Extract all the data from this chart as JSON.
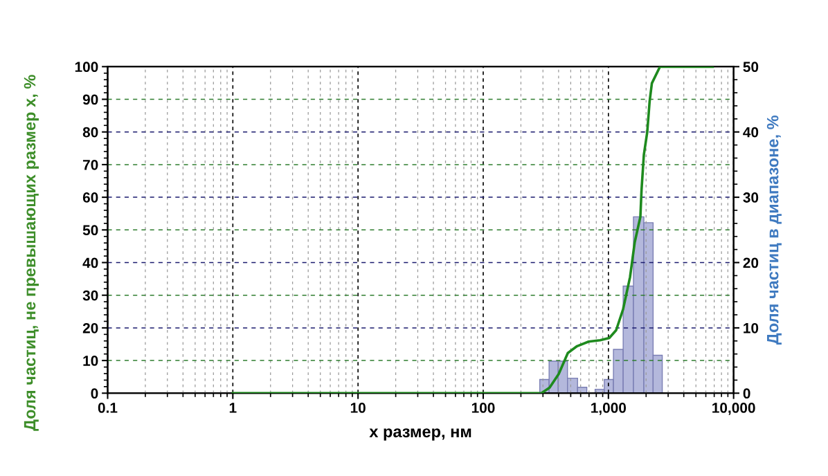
{
  "chart_data": {
    "type": "line",
    "xlabel": "x размер, нм",
    "ylabel": "Доля частиц, не превышающих размер x, %",
    "y2label": "Доля частиц в диапазоне, %",
    "log": "x",
    "xlim": [
      0.1,
      10000
    ],
    "xticks": [
      {
        "value": 0.1,
        "label": "0.1"
      },
      {
        "value": 1,
        "label": "1"
      },
      {
        "value": 10,
        "label": "10"
      },
      {
        "value": 100,
        "label": "100"
      },
      {
        "value": 1000,
        "label": "1,000"
      },
      {
        "value": 10000,
        "label": "10,000"
      }
    ],
    "ylim": [
      0,
      100
    ],
    "yticks": [
      0,
      10,
      20,
      30,
      40,
      50,
      60,
      70,
      80,
      90,
      100
    ],
    "y2lim": [
      0,
      50
    ],
    "y2ticks": [
      0,
      10,
      20,
      30,
      40,
      50
    ],
    "grid": true,
    "series": [
      {
        "type": "histogram",
        "axis": "y2",
        "color": "#b4b8dc",
        "bins": [
          283,
          336,
          397,
          471,
          567,
          672,
          783,
          927,
          1097,
          1312,
          1585,
          1919,
          2275,
          2692
        ],
        "values": [
          2.1,
          4.9,
          4.9,
          2.3,
          0.9,
          null,
          0.6,
          2.1,
          6.7,
          16.4,
          27.0,
          26.1,
          5.8
        ]
      },
      {
        "axis": "y",
        "color": "#1e8a1e",
        "x": [
          1,
          292,
          339,
          401,
          474,
          562,
          695,
          859,
          1016,
          1153,
          1310,
          1489,
          1622,
          1800,
          1840,
          1919,
          2043,
          2133,
          2224,
          2583,
          6808
        ],
        "values": [
          0,
          0,
          1.7,
          5.9,
          12.3,
          14.4,
          15.8,
          16.2,
          16.9,
          19.3,
          25.7,
          35.6,
          46.2,
          54,
          62.4,
          73,
          80,
          89.3,
          94.9,
          100,
          100
        ]
      }
    ]
  }
}
